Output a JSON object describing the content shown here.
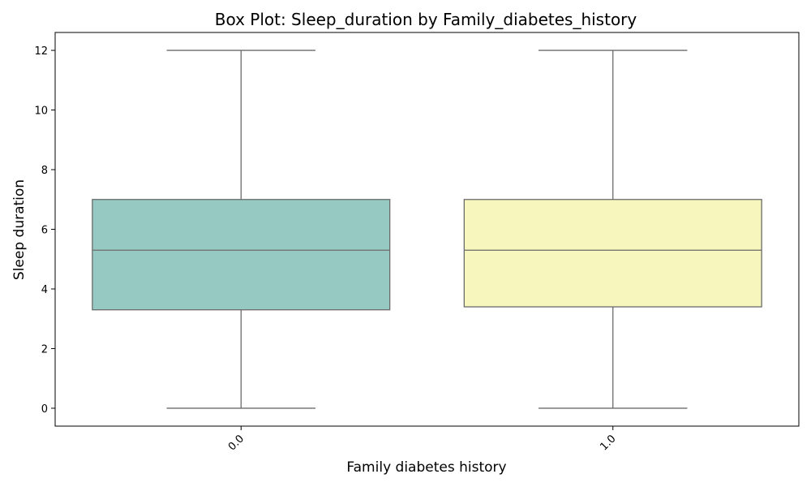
{
  "chart_data": {
    "type": "box",
    "title": "Box Plot: Sleep_duration by Family_diabetes_history",
    "xlabel": "Family diabetes history",
    "ylabel": "Sleep duration",
    "ylim": [
      -0.6,
      12.6
    ],
    "yticks": [
      0,
      2,
      4,
      6,
      8,
      10,
      12
    ],
    "grid": false,
    "legend": "none",
    "categories": [
      "0.0",
      "1.0"
    ],
    "boxes": [
      {
        "category": "0.0",
        "min": 0,
        "q1": 3.3,
        "median": 5.3,
        "q3": 7.0,
        "max": 12,
        "color": "#96c9c1"
      },
      {
        "category": "1.0",
        "min": 0,
        "q1": 3.4,
        "median": 5.3,
        "q3": 7.0,
        "max": 12,
        "color": "#f7f7bd"
      }
    ],
    "box_edge_color": "#6b6b6b"
  }
}
